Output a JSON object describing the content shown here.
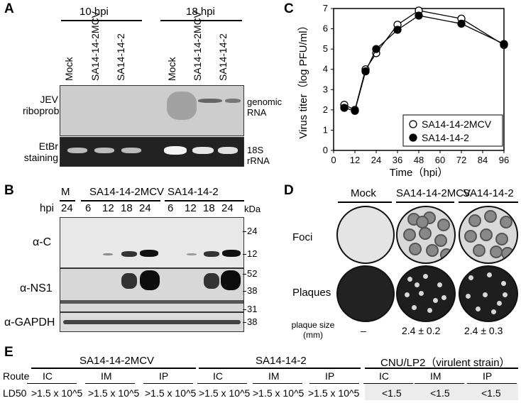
{
  "panels": {
    "A": "A",
    "B": "B",
    "C": "C",
    "D": "D",
    "E": "E"
  },
  "panel_a": {
    "time_groups": [
      "10 hpi",
      "18 hpi"
    ],
    "lanes": [
      "Mock",
      "SA14-14-2MCV",
      "SA14-14-2",
      "Mock",
      "SA14-14-2MCV",
      "SA14-14-2"
    ],
    "row_labels": [
      "JEV riboprobe",
      "EtBr staining"
    ],
    "right_labels": [
      "genomic RNA",
      "18S rRNA"
    ]
  },
  "panel_b": {
    "groups": [
      "M",
      "SA14-14-2MCV",
      "SA14-14-2"
    ],
    "hpi_label": "hpi",
    "hpi_values": [
      "24",
      "6",
      "12",
      "18",
      "24",
      "6",
      "12",
      "18",
      "24"
    ],
    "kda_label": "kDa",
    "row_labels": [
      "α-C",
      "α-NS1",
      "α-GAPDH"
    ],
    "markers": [
      "24",
      "12",
      "52",
      "38",
      "31",
      "38"
    ]
  },
  "chart_data": {
    "type": "line",
    "xlabel": "Time（hpi）",
    "ylabel": "Virus titer（log PFU/ml）",
    "xticks": [
      0,
      12,
      24,
      36,
      48,
      60,
      72,
      84,
      96
    ],
    "yticks": [
      0,
      1,
      2,
      3,
      4,
      5,
      6,
      7
    ],
    "xlim": [
      0,
      96
    ],
    "ylim": [
      0,
      7
    ],
    "legend_position": "bottom-right",
    "series": [
      {
        "name": "SA14-14-2MCV",
        "marker": "open-circle",
        "x": [
          6,
          12,
          18,
          24,
          36,
          48,
          72,
          96
        ],
        "y": [
          2.25,
          2.0,
          4.0,
          4.8,
          6.2,
          6.9,
          6.5,
          5.2
        ]
      },
      {
        "name": "SA14-14-2",
        "marker": "filled-circle",
        "x": [
          6,
          12,
          18,
          24,
          36,
          48,
          72,
          96
        ],
        "y": [
          2.1,
          1.95,
          3.9,
          5.0,
          5.95,
          6.65,
          6.25,
          5.25
        ]
      }
    ]
  },
  "panel_d": {
    "columns": [
      "Mock",
      "SA14-14-2MCV",
      "SA14-14-2"
    ],
    "rows": [
      "Foci",
      "Plaques"
    ],
    "plaque_size_label": "plaque size (mm)",
    "plaque_sizes": [
      "–",
      "2.4 ± 0.2",
      "2.4 ± 0.3"
    ]
  },
  "panel_e": {
    "groups": [
      "SA14-14-2MCV",
      "SA14-14-2",
      "CNU/LP2（virulent strain）"
    ],
    "route_label": "Route",
    "ld50_label": "LD50",
    "routes": [
      "IC",
      "IM",
      "IP",
      "IC",
      "IM",
      "IP",
      "IC",
      "IM",
      "IP"
    ],
    "values": [
      ">1.5 x 10^5",
      ">1.5 x 10^5",
      ">1.5 x 10^5",
      ">1.5 x 10^5",
      ">1.5 x 10^5",
      ">1.5 x 10^5",
      "<1.5",
      "<1.5",
      "<1.5"
    ]
  }
}
